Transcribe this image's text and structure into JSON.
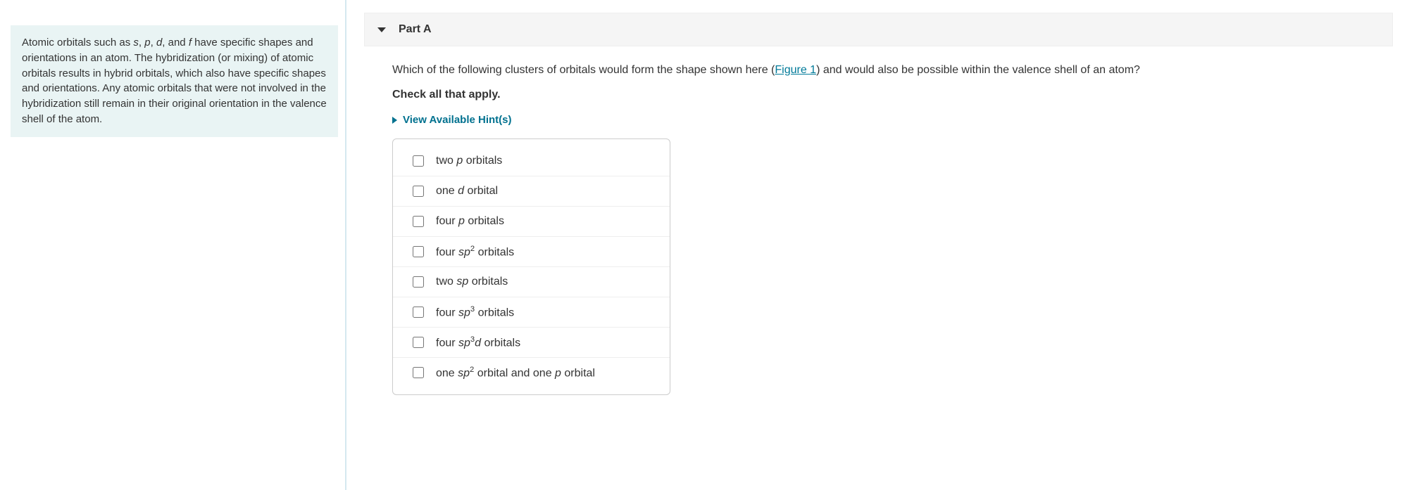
{
  "intro": {
    "prefix": "Atomic orbitals such as ",
    "s": "s",
    "c1": ", ",
    "p": "p",
    "c2": ", ",
    "d": "d",
    "c3": ", and ",
    "f": "f",
    "rest": " have specific shapes and orientations in an atom. The hybridization (or mixing) of atomic orbitals results in hybrid orbitals, which also have specific shapes and orientations. Any atomic orbitals that were not involved in the hybridization still remain in their original orientation in the valence shell of the atom."
  },
  "part": {
    "label": "Part A"
  },
  "question": {
    "text_before": "Which of the following clusters of orbitals would form the shape shown here (",
    "figure_label": "Figure 1",
    "text_after": ") and would also be possible within the valence shell of an atom?",
    "check_all": "Check all that apply.",
    "hints_label": "View Available Hint(s)"
  },
  "options": [
    {
      "pre": "two ",
      "orb": "p",
      "sup": "",
      "post": " orbitals"
    },
    {
      "pre": "one ",
      "orb": "d",
      "sup": "",
      "post": " orbital"
    },
    {
      "pre": "four ",
      "orb": "p",
      "sup": "",
      "post": " orbitals"
    },
    {
      "pre": "four ",
      "orb": "sp",
      "sup": "2",
      "post": " orbitals"
    },
    {
      "pre": "two ",
      "orb": "sp",
      "sup": "",
      "post": " orbitals"
    },
    {
      "pre": "four ",
      "orb": "sp",
      "sup": "3",
      "post": " orbitals"
    },
    {
      "pre": "four ",
      "orb": "sp",
      "sup": "3",
      "orb2": "d",
      "post": " orbitals"
    },
    {
      "pre": "one ",
      "orb": "sp",
      "sup": "2",
      "mid": " orbital and one ",
      "orb2": "p",
      "post": " orbital"
    }
  ],
  "colors": {
    "intro_bg": "#e9f4f4",
    "divider": "#d5e8f0",
    "part_bg": "#f5f5f5",
    "link": "#007a99",
    "hints": "#00718f",
    "border": "#cccccc",
    "row_border": "#eeeeee",
    "text": "#333333"
  }
}
